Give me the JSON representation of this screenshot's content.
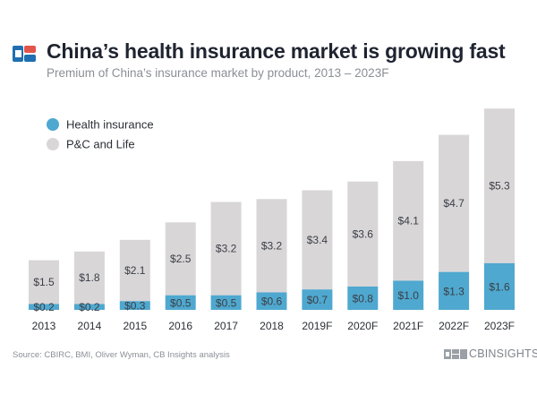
{
  "header": {
    "title": "China’s health insurance market is growing fast",
    "subtitle": "Premium of China’s insurance market by product, 2013 – 2023F"
  },
  "footer": {
    "source": "Source: CBIRC, BMI, Oliver Wyman, CB Insights analysis",
    "brand": "CBINSIGHTS"
  },
  "colors": {
    "health": "#4fa8cf",
    "pc_life": "#d9d6d8",
    "logo_blue": "#1f6fb2",
    "logo_red": "#e2554a"
  },
  "chart_data": {
    "type": "bar",
    "stacked": true,
    "title": "China’s health insurance market is growing fast",
    "subtitle": "Premium of China’s insurance market by product, 2013 – 2023F",
    "xlabel": "",
    "ylabel": "",
    "ylim": [
      0,
      7.0
    ],
    "grid": false,
    "legend_position": "top-left",
    "categories": [
      "2013",
      "2014",
      "2015",
      "2016",
      "2017",
      "2018",
      "2019F",
      "2020F",
      "2021F",
      "2022F",
      "2023F"
    ],
    "series": [
      {
        "name": "Health insurance",
        "color": "#4fa8cf",
        "values": [
          0.2,
          0.2,
          0.3,
          0.5,
          0.5,
          0.6,
          0.7,
          0.8,
          1.0,
          1.3,
          1.6
        ],
        "labels": [
          "$0.2",
          "$0.2",
          "$0.3",
          "$0.5",
          "$0.5",
          "$0.6",
          "$0.7",
          "$0.8",
          "$1.0",
          "$1.3",
          "$1.6"
        ]
      },
      {
        "name": "P&C and Life",
        "color": "#d9d6d8",
        "values": [
          1.5,
          1.8,
          2.1,
          2.5,
          3.2,
          3.2,
          3.4,
          3.6,
          4.1,
          4.7,
          5.3
        ],
        "labels": [
          "$1.5",
          "$1.8",
          "$2.1",
          "$2.5",
          "$3.2",
          "$3.2",
          "$3.4",
          "$3.6",
          "$4.1",
          "$4.7",
          "$5.3"
        ]
      }
    ]
  }
}
